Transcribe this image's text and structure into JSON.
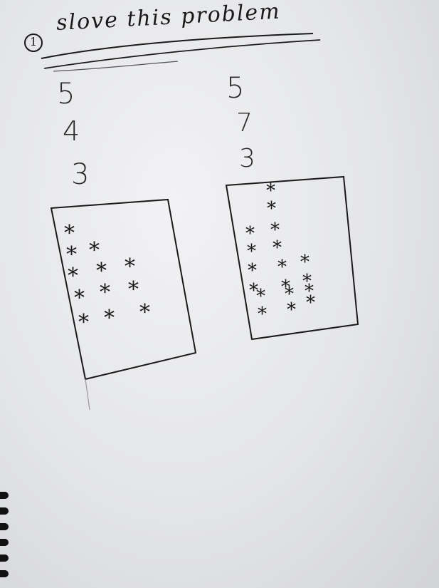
{
  "heading": {
    "number": "1",
    "text": "slove this problem"
  },
  "left_problem": {
    "numbers": [
      "5",
      "4",
      "3"
    ],
    "stars": [
      [
        "*"
      ],
      [
        "*",
        "*"
      ],
      [
        "*",
        "*",
        "*"
      ],
      [
        "*",
        "*",
        "*"
      ],
      [
        "*",
        "*",
        "*"
      ]
    ]
  },
  "right_problem": {
    "numbers": [
      "5",
      "7",
      "3"
    ],
    "stars": [
      [
        "*"
      ],
      [
        "*"
      ],
      [
        "*",
        "*"
      ],
      [
        "*",
        "*"
      ],
      [
        "*",
        "*",
        "*"
      ],
      [
        "*",
        "*",
        "*"
      ],
      [
        "*",
        "*",
        "*"
      ],
      [
        "*",
        "*",
        "*"
      ]
    ]
  },
  "colors": {
    "ink": "#1a1a1a",
    "paper": "#eceef0"
  }
}
